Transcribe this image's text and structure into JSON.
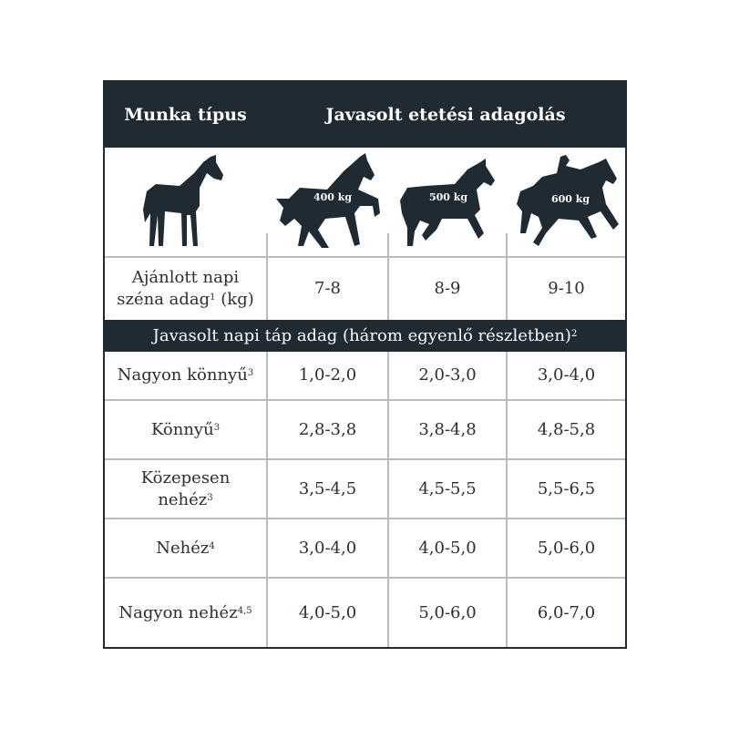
{
  "header": {
    "col1": "Munka típus",
    "col2": "Javasolt etetési adagolás"
  },
  "horses": [
    {
      "icon": "standing-horse-icon"
    },
    {
      "icon": "prancing-horse-icon",
      "weight": "400 kg"
    },
    {
      "icon": "trotting-horse-icon",
      "weight": "500 kg"
    },
    {
      "icon": "horse-with-rider-icon",
      "weight": "600 kg"
    }
  ],
  "hay": {
    "label_line1": "Ajánlott napi",
    "label_line2": "széna adag",
    "label_sup": "1",
    "label_unit": "(kg)",
    "values": [
      "7-8",
      "8-9",
      "9-10"
    ]
  },
  "feed_section": {
    "title": "Javasolt napi táp adag (három egyenlő részletben)",
    "sup": "2"
  },
  "rows": [
    {
      "label": "Nagyon könnyű",
      "sup": "3",
      "values": [
        "1,0-2,0",
        "2,0-3,0",
        "3,0-4,0"
      ]
    },
    {
      "label": "Könnyű",
      "sup": "3",
      "values": [
        "2,8-3,8",
        "3,8-4,8",
        "4,8-5,8"
      ]
    },
    {
      "label_line1": "Közepesen",
      "label": "nehéz",
      "sup": "3",
      "values": [
        "3,5-4,5",
        "4,5-5,5",
        "5,5-6,5"
      ]
    },
    {
      "label": "Nehéz",
      "sup": "4",
      "values": [
        "3,0-4,0",
        "4,0-5,0",
        "5,0-6,0"
      ]
    },
    {
      "label": "Nagyon nehéz",
      "sup": "4,5",
      "values": [
        "4,0-5,0",
        "5,0-6,0",
        "6,0-7,0"
      ]
    }
  ],
  "colors": {
    "dark": "#1f2a33",
    "grid": "#b8bcc0"
  }
}
